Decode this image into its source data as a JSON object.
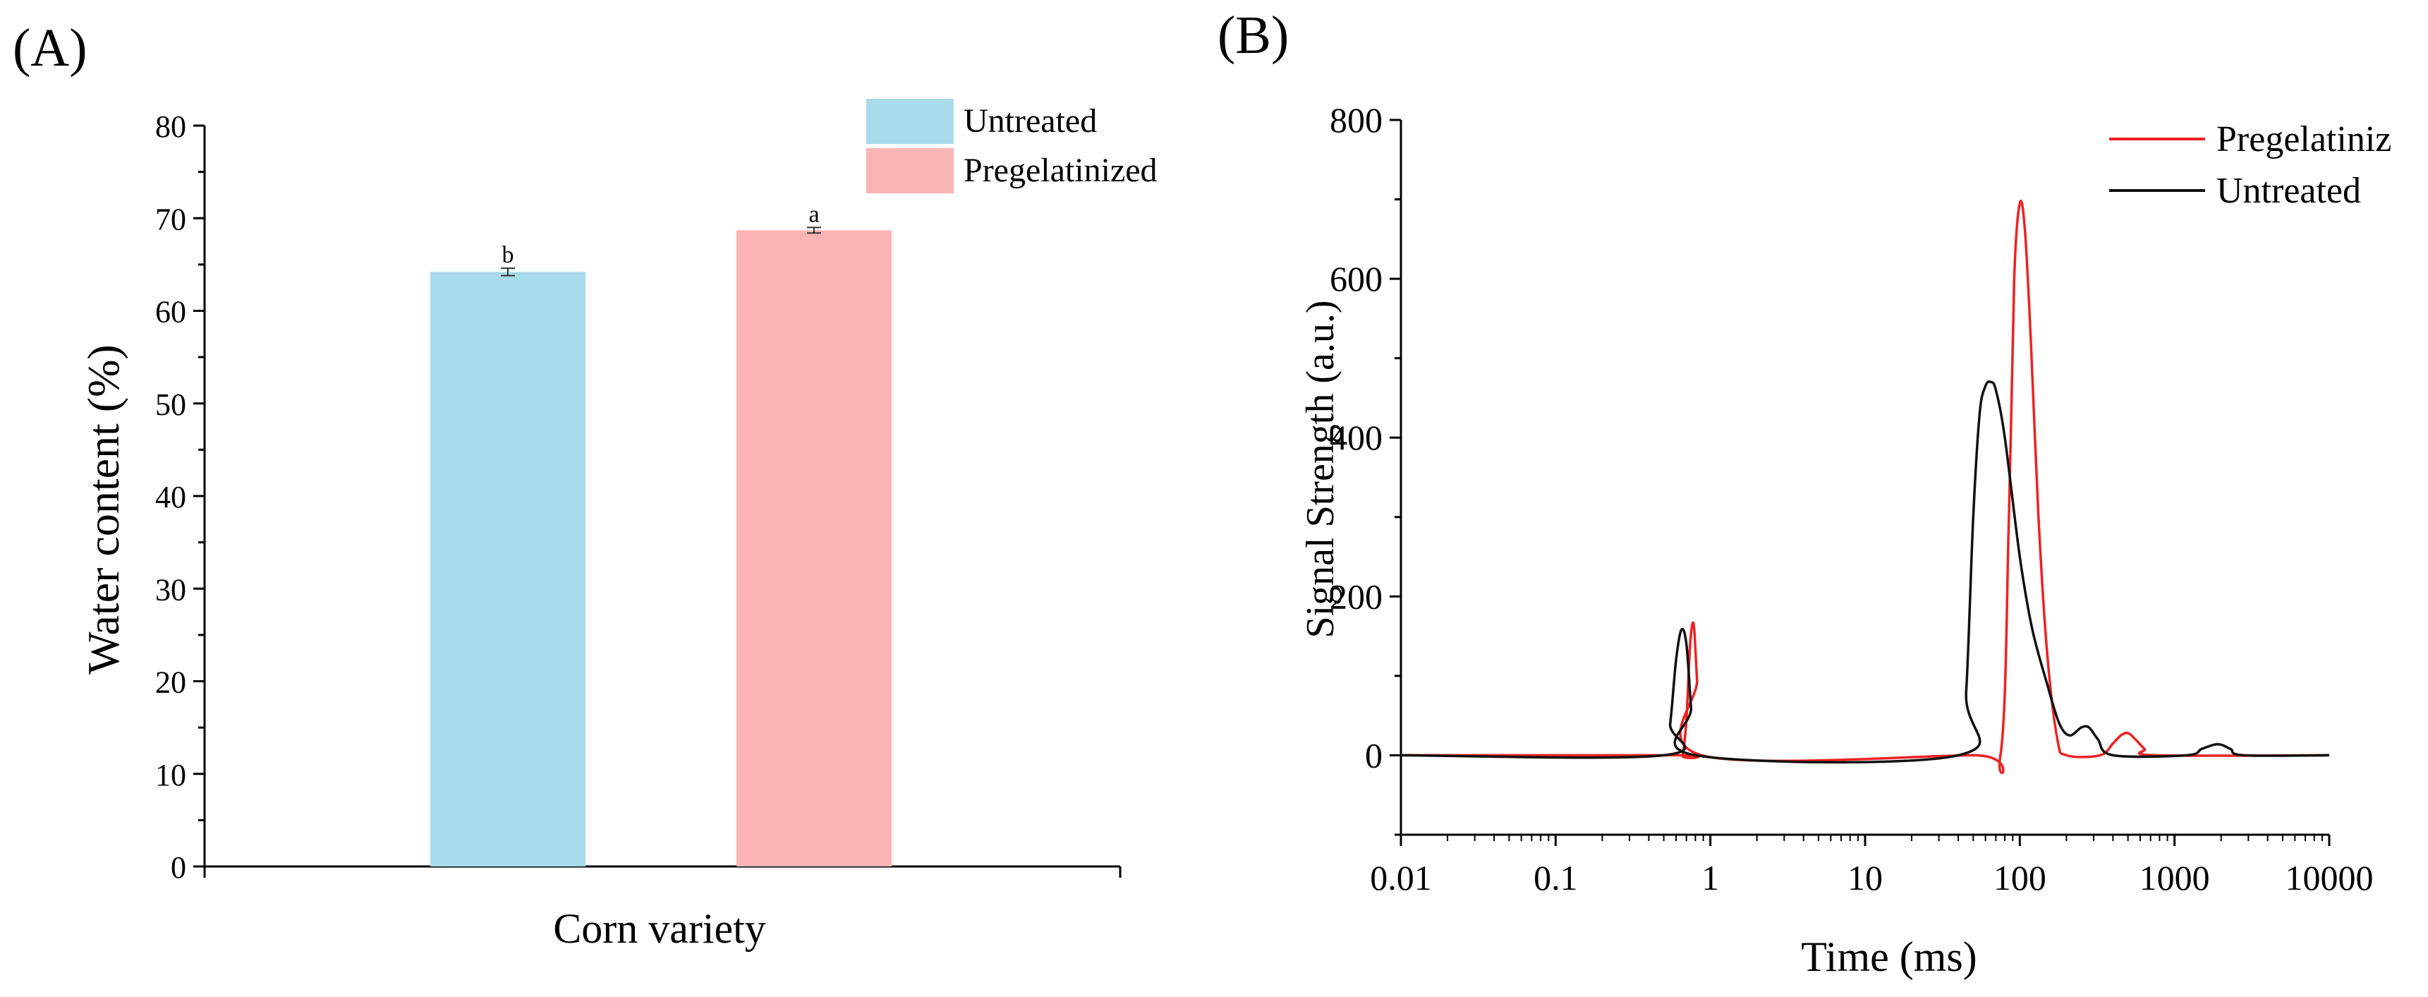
{
  "colors": {
    "untreated_bar": "#a8dcea",
    "pregelatinized_bar": "#fbb4b4",
    "pregelatinized_line": "#ee2222",
    "untreated_line": "#111111"
  },
  "chart_data": [
    {
      "panel": "(A)",
      "type": "bar",
      "title": "",
      "xlabel": "Corn variety",
      "ylabel": "Water content (%)",
      "ylim": [
        0,
        80
      ],
      "yticks": [
        0,
        10,
        20,
        30,
        40,
        50,
        60,
        70,
        80
      ],
      "ytick_labels": [
        "0",
        "10",
        "20",
        "30",
        "40",
        "50",
        "60",
        "70",
        "80"
      ],
      "categories": [
        "Untreated",
        "Pregelatinized"
      ],
      "values": [
        64.2,
        68.7
      ],
      "errors": [
        0.4,
        0.3
      ],
      "significance": [
        "b",
        "a"
      ],
      "legend": [
        "Untreated",
        "Pregelatinized"
      ],
      "legend_position": "top-right",
      "grid": false
    },
    {
      "panel": "(B)",
      "type": "line",
      "title": "",
      "xlabel": "Time (ms)",
      "ylabel": "Signal Strength (a.u.)",
      "xscale": "log",
      "xlim": [
        0.01,
        10000
      ],
      "ylim": [
        -100,
        800
      ],
      "xtick_values": [
        0.01,
        0.1,
        1,
        10,
        100,
        1000,
        10000
      ],
      "xtick_labels": [
        "0.01",
        "0.1",
        "1",
        "10",
        "100",
        "1000",
        "10000"
      ],
      "ytick_values": [
        0,
        200,
        400,
        600,
        800
      ],
      "ytick_labels": [
        "0",
        "200",
        "400",
        "600",
        "800"
      ],
      "legend": [
        "Pregelatiniz",
        "Untreated"
      ],
      "legend_position": "top-right",
      "grid": false,
      "series": [
        {
          "name": "Pregelatinized",
          "x": [
            0.01,
            0.6,
            0.66,
            0.7,
            0.74,
            0.78,
            0.82,
            0.88,
            50,
            75,
            85,
            92,
            100,
            108,
            118,
            132,
            150,
            175,
            200,
            330,
            400,
            450,
            500,
            560,
            640,
            750,
            10000
          ],
          "y": [
            0,
            0,
            0,
            45,
            140,
            165,
            95,
            0,
            0,
            0,
            300,
            600,
            695,
            660,
            520,
            300,
            130,
            20,
            0,
            0,
            15,
            25,
            28,
            20,
            8,
            0,
            0
          ]
        },
        {
          "name": "Untreated",
          "x": [
            0.01,
            0.5,
            0.55,
            0.6,
            0.65,
            0.7,
            0.75,
            0.8,
            40,
            45,
            50,
            55,
            60,
            65,
            70,
            80,
            100,
            120,
            150,
            180,
            210,
            250,
            280,
            320,
            400,
            1200,
            1500,
            1900,
            2300,
            2800,
            10000
          ],
          "y": [
            0,
            0,
            40,
            120,
            158,
            140,
            60,
            0,
            0,
            80,
            300,
            430,
            465,
            470,
            460,
            400,
            250,
            160,
            90,
            40,
            25,
            35,
            35,
            20,
            0,
            0,
            8,
            14,
            8,
            0,
            0
          ]
        }
      ]
    }
  ]
}
